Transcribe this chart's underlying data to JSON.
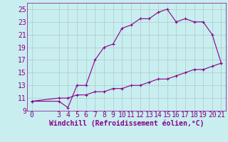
{
  "xlabel": "Windchill (Refroidissement éolien,°C)",
  "bg_color": "#c8eef0",
  "line_color": "#880088",
  "grid_color": "#b0c8c8",
  "xlim": [
    -0.5,
    21.5
  ],
  "ylim": [
    9,
    26
  ],
  "yticks": [
    9,
    11,
    13,
    15,
    17,
    19,
    21,
    23,
    25
  ],
  "xticks": [
    0,
    3,
    4,
    5,
    6,
    7,
    8,
    9,
    10,
    11,
    12,
    13,
    14,
    15,
    16,
    17,
    18,
    19,
    20,
    21
  ],
  "upper_x": [
    0,
    3,
    4,
    5,
    6,
    7,
    8,
    9,
    10,
    11,
    12,
    13,
    14,
    15,
    16,
    17,
    18,
    19,
    20,
    21
  ],
  "upper_y": [
    10.5,
    10.5,
    9.5,
    13.0,
    13.0,
    17.0,
    19.0,
    19.5,
    22.0,
    22.5,
    23.5,
    23.5,
    24.5,
    25.0,
    23.0,
    23.5,
    23.0,
    23.0,
    21.0,
    16.5
  ],
  "lower_x": [
    0,
    3,
    4,
    5,
    6,
    7,
    8,
    9,
    10,
    11,
    12,
    13,
    14,
    15,
    16,
    17,
    18,
    19,
    20,
    21
  ],
  "lower_y": [
    10.5,
    11.0,
    11.0,
    11.5,
    11.5,
    12.0,
    12.0,
    12.5,
    12.5,
    13.0,
    13.0,
    13.5,
    14.0,
    14.0,
    14.5,
    15.0,
    15.5,
    15.5,
    16.0,
    16.5
  ],
  "tick_fontsize": 7,
  "xlabel_fontsize": 7,
  "marker_size": 3,
  "linewidth": 0.8
}
